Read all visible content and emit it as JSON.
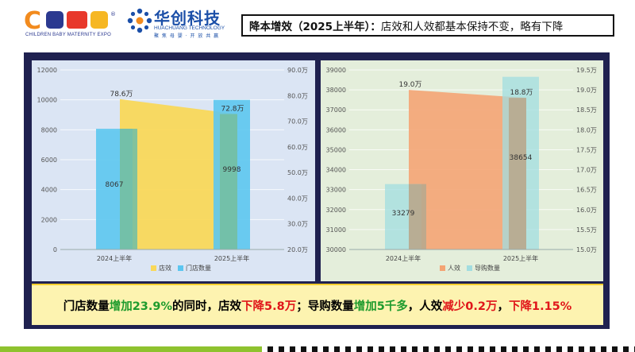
{
  "header": {
    "cbme_logo": {
      "letters": "CBME",
      "subtitle": "CHILDREN BABY MATERNITY EXPO",
      "trademark": "®"
    },
    "huachuang_logo": {
      "name": "华创科技",
      "english": "HUACHUANG TECHNOLOGY",
      "slogan": "聚 焦 母 婴 · 开 放 共 赢"
    },
    "title_bold": "降本增效（2025上半年）：",
    "title_rest": "店效和人效都基本保持不变，略有下降"
  },
  "colors": {
    "store_efficiency": "#f9d85a",
    "store_count": "#5cc6f0",
    "staff_efficiency": "#f4a474",
    "guide_count": "#a2dde0",
    "green_text": "#1e9b2d",
    "red_text": "#e0161a"
  },
  "chart_data": [
    {
      "type": "bar",
      "categories": [
        "2024上半年",
        "2025上半年"
      ],
      "series": [
        {
          "name": "店效",
          "kind": "area",
          "axis": "right",
          "values": [
            78.6,
            72.8
          ],
          "labels": [
            "78.6万",
            "72.8万"
          ]
        },
        {
          "name": "门店数量",
          "kind": "bar",
          "axis": "left",
          "values": [
            8067,
            9998
          ],
          "labels": [
            "8067",
            "9998"
          ]
        }
      ],
      "y_left": {
        "min": 0,
        "max": 12000,
        "ticks": [
          "0",
          "2000",
          "4000",
          "6000",
          "8000",
          "10000",
          "12000"
        ]
      },
      "y_right": {
        "min": 20,
        "max": 90,
        "ticks": [
          "20.0万",
          "30.0万",
          "40.0万",
          "50.0万",
          "60.0万",
          "70.0万",
          "80.0万",
          "90.0万"
        ]
      },
      "legend_position": "bottom"
    },
    {
      "type": "bar",
      "categories": [
        "2024上半年",
        "2025上半年"
      ],
      "series": [
        {
          "name": "人效",
          "kind": "area",
          "axis": "right",
          "values": [
            19.0,
            18.8
          ],
          "labels": [
            "19.0万",
            "18.8万"
          ]
        },
        {
          "name": "导购数量",
          "kind": "bar",
          "axis": "left",
          "values": [
            33279,
            38654
          ],
          "labels": [
            "33279",
            "38654"
          ]
        }
      ],
      "y_left": {
        "min": 30000,
        "max": 39000,
        "ticks": [
          "30000",
          "31000",
          "32000",
          "33000",
          "34000",
          "35000",
          "36000",
          "37000",
          "38000",
          "39000"
        ]
      },
      "y_right": {
        "min": 15.0,
        "max": 19.5,
        "ticks": [
          "15.0万",
          "15.5万",
          "16.0万",
          "16.5万",
          "17.0万",
          "17.5万",
          "18.0万",
          "18.5万",
          "19.0万",
          "19.5万"
        ]
      },
      "legend_position": "bottom"
    }
  ],
  "conclusion": [
    {
      "text": "门店数量",
      "color": "black"
    },
    {
      "text": "增加23.9%",
      "color": "green"
    },
    {
      "text": "的同时，",
      "color": "black"
    },
    {
      "text": "店效",
      "color": "black"
    },
    {
      "text": "下降5.8万",
      "color": "red"
    },
    {
      "text": "；",
      "color": "black"
    },
    {
      "text": "导购数量",
      "color": "black"
    },
    {
      "text": "增加5千多",
      "color": "green"
    },
    {
      "text": "，人效",
      "color": "black"
    },
    {
      "text": "减少0.2万",
      "color": "red"
    },
    {
      "text": "，",
      "color": "black"
    },
    {
      "text": "下降1.15%",
      "color": "red"
    }
  ]
}
